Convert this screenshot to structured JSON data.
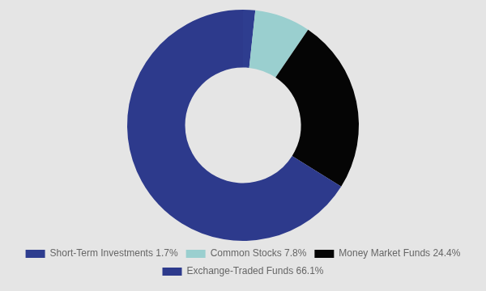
{
  "chart_data": {
    "type": "doughnut",
    "categories": [
      "Short-Term Investments 1.7%",
      "Common Stocks 7.8%",
      "Money Market Funds 24.4%",
      "Exchange-Traded Funds 66.1%"
    ],
    "values": [
      1.7,
      7.8,
      24.4,
      66.1
    ],
    "colors": [
      "#2e3d8f",
      "#9acfcf",
      "#050505",
      "#2d3a8c"
    ],
    "legend": "bottom"
  }
}
